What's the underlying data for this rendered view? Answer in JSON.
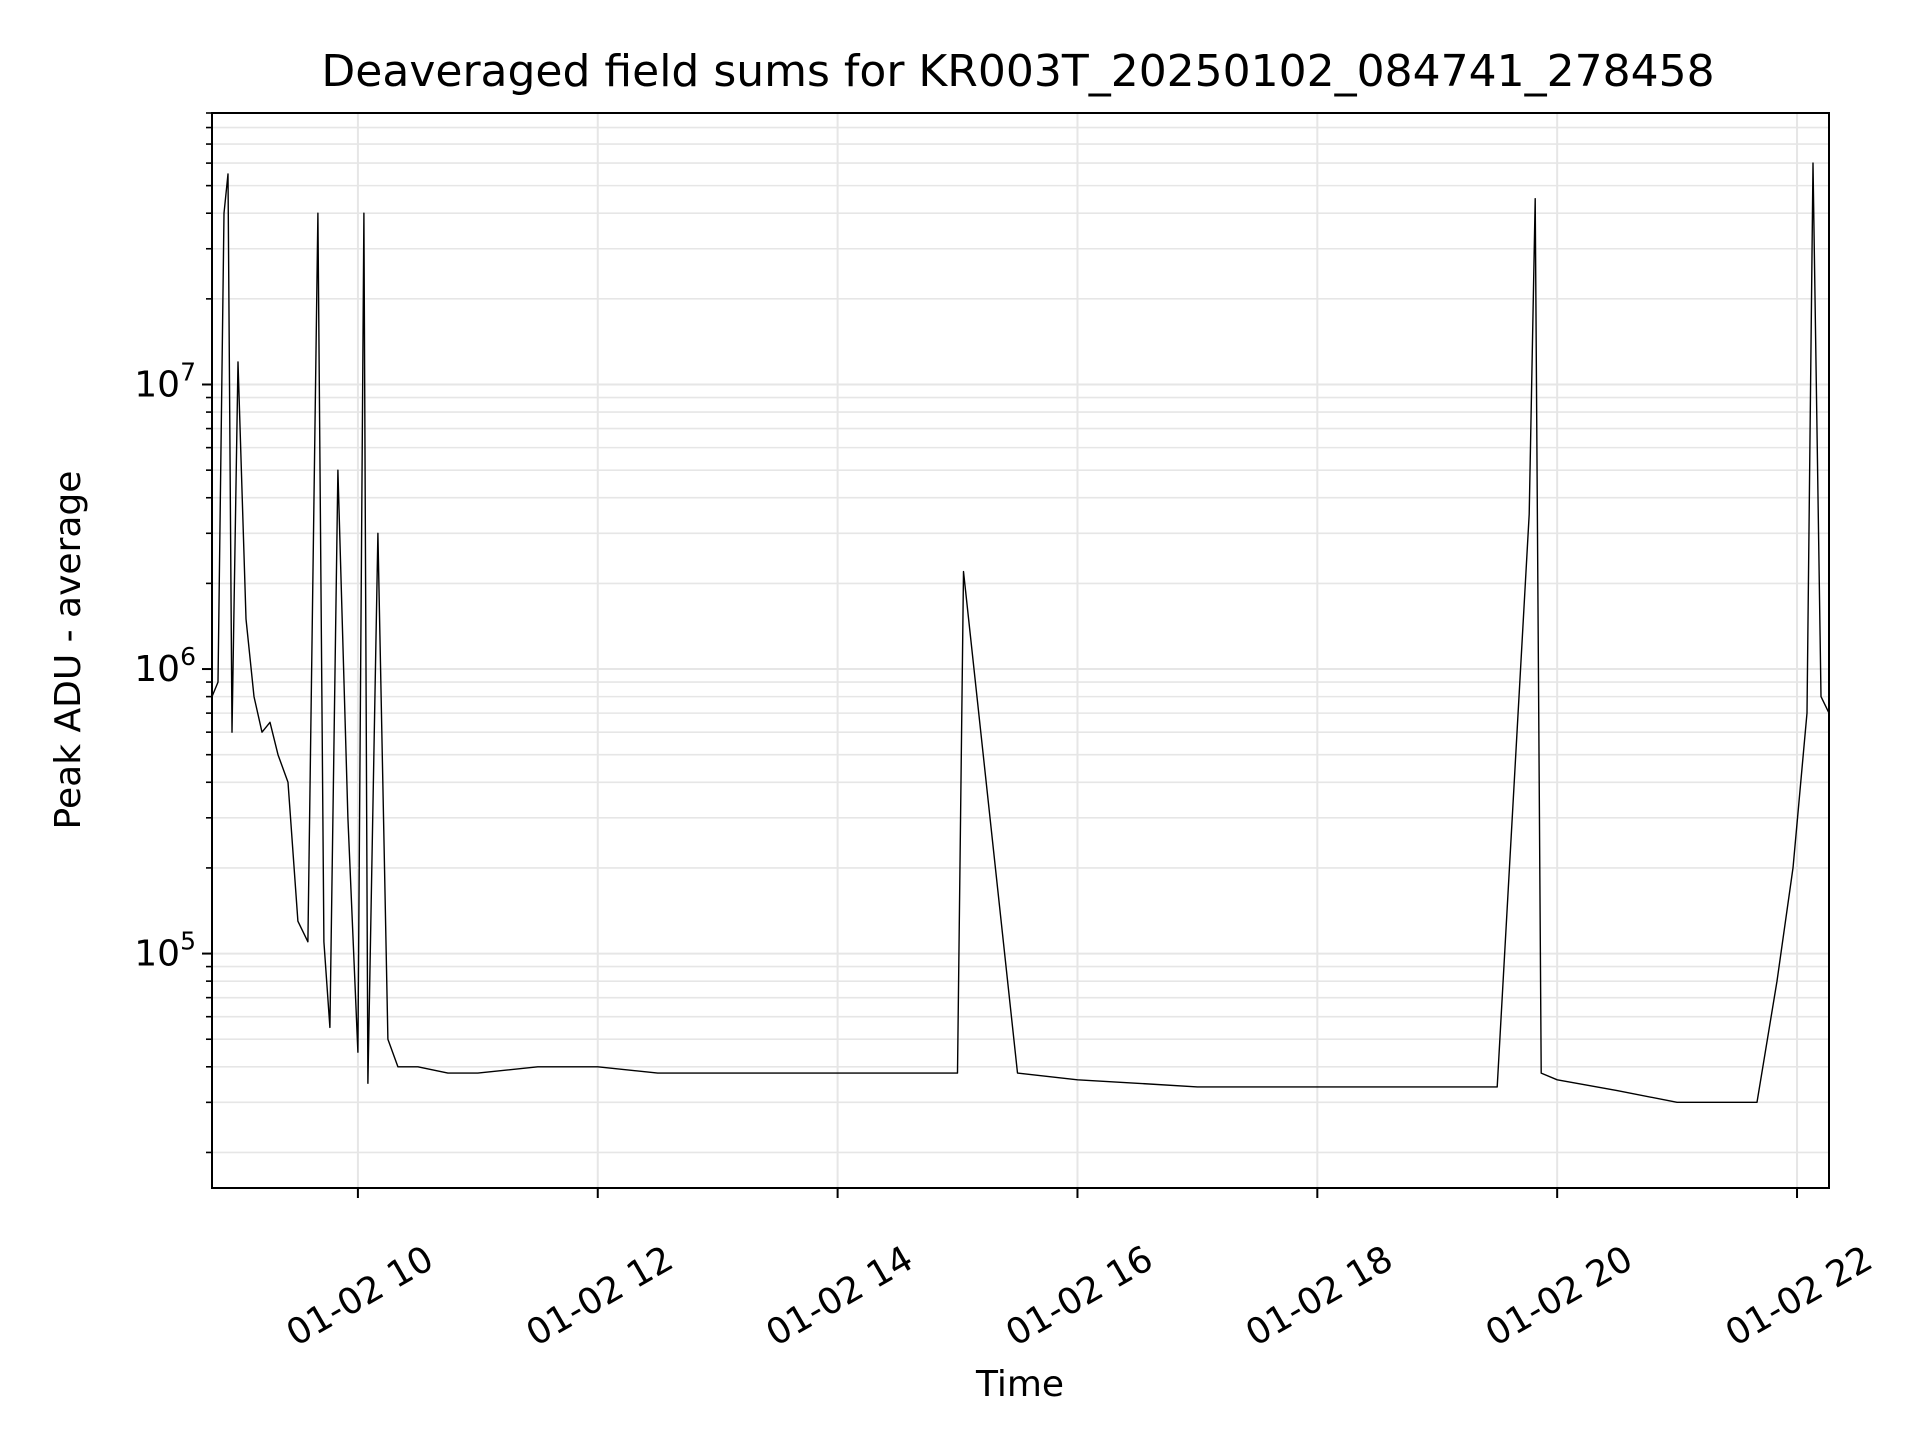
{
  "chart_data": {
    "type": "line",
    "title": "Deaveraged field sums for KR003T_20250102_084741_278458",
    "xlabel": "Time",
    "ylabel": "Peak ADU - average",
    "yscale": "log",
    "ylim": [
      15000,
      90000000
    ],
    "xlim": [
      "2025-01-02 08:47",
      "2025-01-02 22:16"
    ],
    "x_ticks": [
      {
        "value": "2025-01-02 10:00",
        "label": "01-02 10"
      },
      {
        "value": "2025-01-02 12:00",
        "label": "01-02 12"
      },
      {
        "value": "2025-01-02 14:00",
        "label": "01-02 14"
      },
      {
        "value": "2025-01-02 16:00",
        "label": "01-02 16"
      },
      {
        "value": "2025-01-02 18:00",
        "label": "01-02 18"
      },
      {
        "value": "2025-01-02 20:00",
        "label": "01-02 20"
      },
      {
        "value": "2025-01-02 22:00",
        "label": "01-02 22"
      }
    ],
    "y_ticks": [
      {
        "value": 100000,
        "base": "10",
        "exp": "5"
      },
      {
        "value": 1000000,
        "base": "10",
        "exp": "6"
      },
      {
        "value": 10000000,
        "base": "10",
        "exp": "7"
      }
    ],
    "grid": true,
    "series_color": "#000000",
    "series": [
      {
        "x": [
          "2025-01-02 08:47",
          "2025-01-02 08:50",
          "2025-01-02 08:53",
          "2025-01-02 08:55",
          "2025-01-02 08:57",
          "2025-01-02 09:00",
          "2025-01-02 09:04",
          "2025-01-02 09:08",
          "2025-01-02 09:12",
          "2025-01-02 09:16",
          "2025-01-02 09:20",
          "2025-01-02 09:25",
          "2025-01-02 09:30",
          "2025-01-02 09:35",
          "2025-01-02 09:40",
          "2025-01-02 09:43",
          "2025-01-02 09:46",
          "2025-01-02 09:50",
          "2025-01-02 09:55",
          "2025-01-02 10:00",
          "2025-01-02 10:03",
          "2025-01-02 10:05",
          "2025-01-02 10:10",
          "2025-01-02 10:15",
          "2025-01-02 10:20",
          "2025-01-02 10:30",
          "2025-01-02 10:45",
          "2025-01-02 11:00",
          "2025-01-02 11:30",
          "2025-01-02 12:00",
          "2025-01-02 12:30",
          "2025-01-02 13:00",
          "2025-01-02 13:30",
          "2025-01-02 14:00",
          "2025-01-02 14:30",
          "2025-01-02 15:00",
          "2025-01-02 15:03",
          "2025-01-02 15:30",
          "2025-01-02 16:00",
          "2025-01-02 16:30",
          "2025-01-02 17:00",
          "2025-01-02 17:30",
          "2025-01-02 18:00",
          "2025-01-02 18:30",
          "2025-01-02 19:00",
          "2025-01-02 19:30",
          "2025-01-02 19:46",
          "2025-01-02 19:49",
          "2025-01-02 19:52",
          "2025-01-02 20:00",
          "2025-01-02 20:30",
          "2025-01-02 21:00",
          "2025-01-02 21:20",
          "2025-01-02 21:30",
          "2025-01-02 21:40",
          "2025-01-02 21:50",
          "2025-01-02 21:58",
          "2025-01-02 22:05",
          "2025-01-02 22:08",
          "2025-01-02 22:12",
          "2025-01-02 22:16"
        ],
        "y": [
          800000,
          900000,
          40000000,
          55000000,
          600000,
          12000000,
          1500000,
          800000,
          600000,
          650000,
          500000,
          400000,
          130000,
          110000,
          40000000,
          110000,
          55000,
          5000000,
          300000,
          45000,
          40000000,
          35000,
          3000000,
          50000,
          40000,
          40000,
          38000,
          38000,
          40000,
          40000,
          38000,
          38000,
          38000,
          38000,
          38000,
          38000,
          2200000,
          38000,
          36000,
          35000,
          34000,
          34000,
          34000,
          34000,
          34000,
          34000,
          3500000,
          45000000,
          38000,
          36000,
          33000,
          30000,
          30000,
          30000,
          30000,
          80000,
          200000,
          700000,
          60000000,
          800000,
          700000
        ]
      }
    ]
  }
}
